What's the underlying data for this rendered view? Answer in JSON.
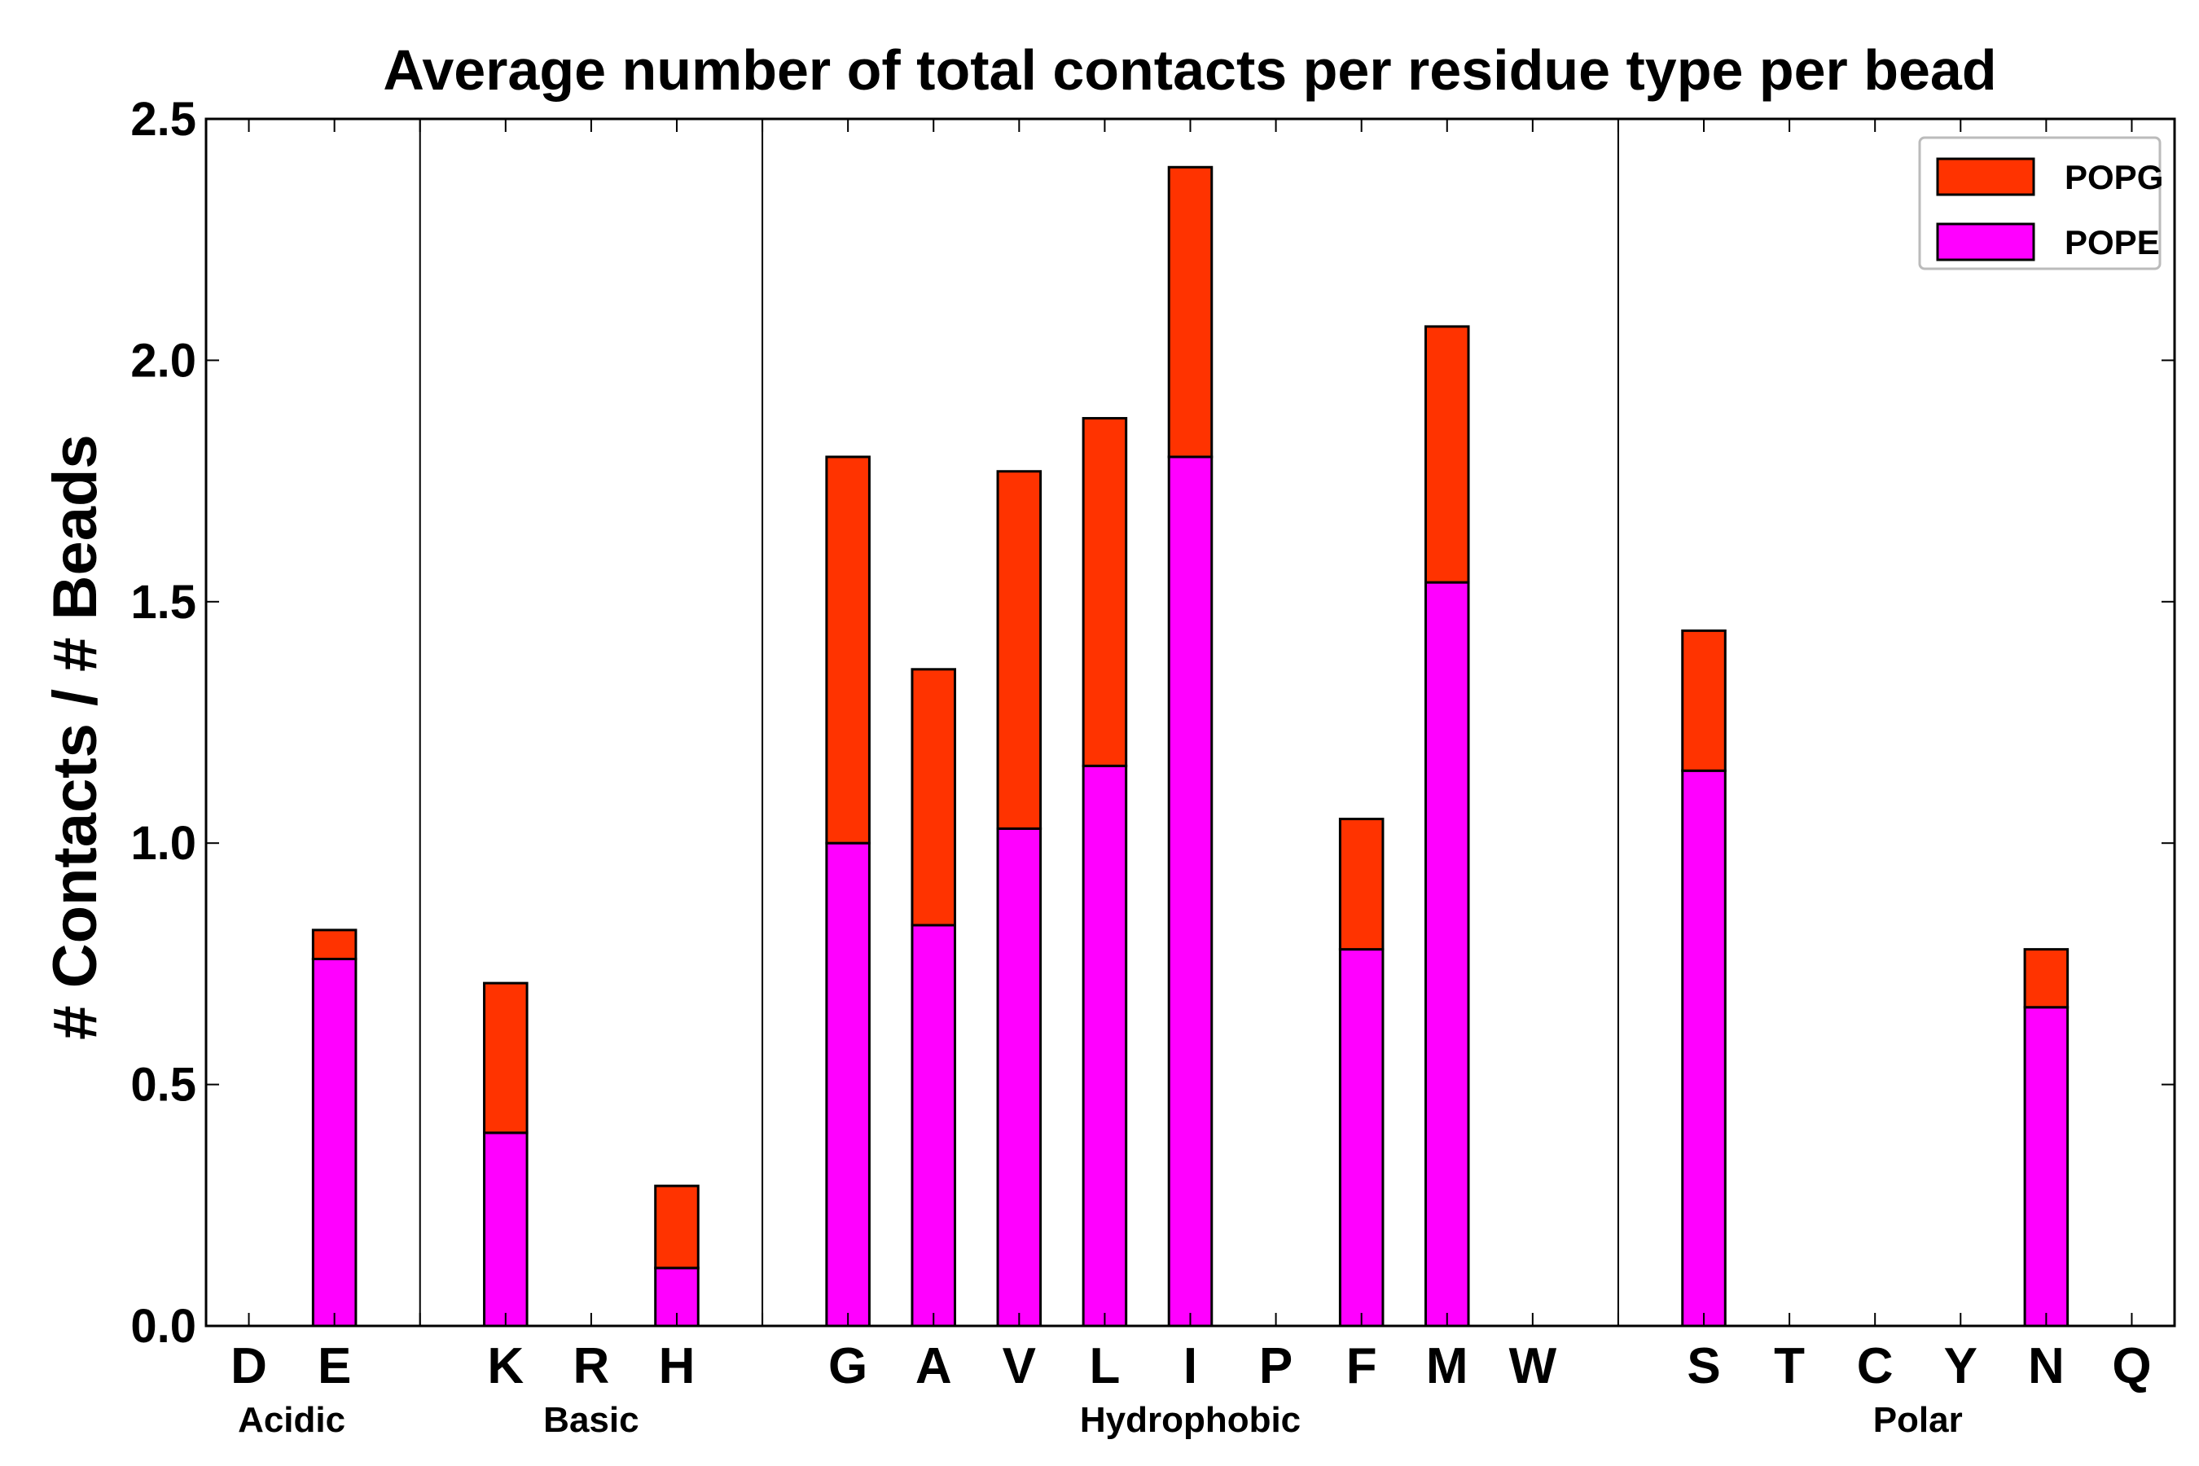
{
  "chart_data": {
    "type": "bar",
    "stacked": true,
    "title": "Average number of total contacts per residue type per bead",
    "xlabel": "",
    "ylabel": "# Contacts / # Beads",
    "ylim": [
      0,
      2.5
    ],
    "yticks": [
      "0.0",
      "0.5",
      "1.0",
      "1.5",
      "2.0",
      "2.5"
    ],
    "grid": false,
    "legend_position": "top-right",
    "categories": [
      "D",
      "E",
      "",
      "K",
      "R",
      "H",
      "",
      "G",
      "A",
      "V",
      "L",
      "I",
      "P",
      "F",
      "M",
      "W",
      "",
      "S",
      "T",
      "C",
      "Y",
      "N",
      "Q"
    ],
    "series": [
      {
        "name": "POPE",
        "color": "#ff00ff",
        "values": [
          0,
          0.76,
          0,
          0.4,
          0,
          0.12,
          0,
          1.0,
          0.83,
          1.03,
          1.16,
          1.8,
          0,
          0.78,
          1.54,
          0,
          0,
          1.15,
          0,
          0,
          0,
          0.66,
          0
        ]
      },
      {
        "name": "POPG",
        "color": "#ff3300",
        "values": [
          0,
          0.06,
          0,
          0.31,
          0,
          0.17,
          0,
          0.8,
          0.53,
          0.74,
          0.72,
          0.6,
          0,
          0.27,
          0.53,
          0,
          0,
          0.29,
          0,
          0,
          0,
          0.12,
          0
        ]
      }
    ],
    "legend_order": [
      "POPG",
      "POPE"
    ],
    "groups": [
      {
        "label": "Acidic",
        "from": 0,
        "to": 1
      },
      {
        "label": "Basic",
        "from": 3,
        "to": 5
      },
      {
        "label": "Hydrophobic",
        "from": 7,
        "to": 15
      },
      {
        "label": "Polar",
        "from": 17,
        "to": 22
      }
    ],
    "separators_after_index": [
      2,
      6,
      16
    ]
  }
}
